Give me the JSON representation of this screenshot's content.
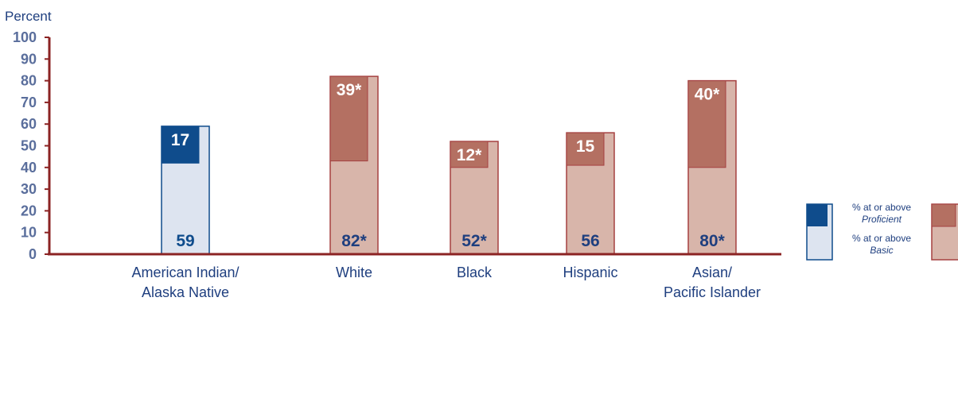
{
  "chart_data": {
    "type": "bar",
    "ylabel": "Percent",
    "ylim": [
      0,
      100
    ],
    "yticks": [
      0,
      10,
      20,
      30,
      40,
      50,
      60,
      70,
      80,
      90,
      100
    ],
    "categories": [
      {
        "lines": [
          "American Indian/",
          "Alaska Native"
        ]
      },
      {
        "lines": [
          "White"
        ]
      },
      {
        "lines": [
          "Black"
        ]
      },
      {
        "lines": [
          "Hispanic"
        ]
      },
      {
        "lines": [
          "Asian/",
          "Pacific Islander"
        ]
      }
    ],
    "series": [
      {
        "name": "% at or above Basic",
        "values": [
          59,
          82,
          52,
          56,
          80
        ],
        "labels": [
          "59",
          "82*",
          "52*",
          "56",
          "80*"
        ]
      },
      {
        "name": "% at or above Proficient",
        "values": [
          17,
          39,
          12,
          15,
          40
        ],
        "labels": [
          "17",
          "39*",
          "12*",
          "15",
          "40*"
        ]
      }
    ],
    "legend": {
      "placement": "right",
      "proficient_line1": "% at or above",
      "proficient_line2": "Proficient",
      "basic_line1": "% at or above",
      "basic_line2": "Basic"
    },
    "colors": {
      "axis": "#8b2323",
      "tick_label": "#5a6e9c",
      "focal_proficient": "#0f4c8c",
      "focal_basic": "#dde4f0",
      "focal_outline": "#0f4c8c",
      "other_proficient": "#b47062",
      "other_basic": "#d8b5aa",
      "other_outline": "#a54040"
    },
    "focal_category_index": 0
  }
}
